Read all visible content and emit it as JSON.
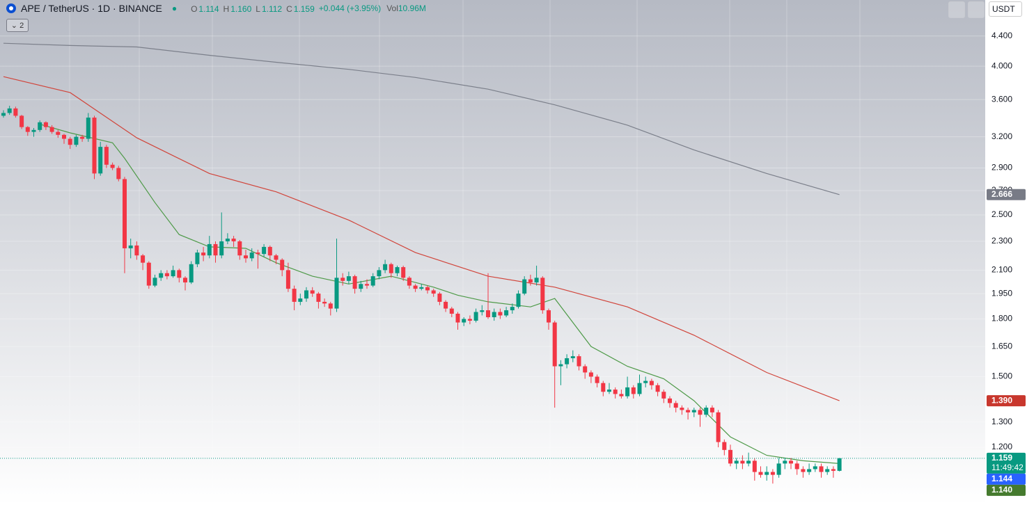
{
  "chart_data": {
    "type": "candlestick",
    "title": "APE / TetherUS · 1D · BINANCE",
    "ohlc": [
      {
        "label": "O",
        "value": "1.114"
      },
      {
        "label": "H",
        "value": "1.160"
      },
      {
        "label": "L",
        "value": "1.112"
      },
      {
        "label": "C",
        "value": "1.159"
      }
    ],
    "change": "+0.044 (+3.95%)",
    "volume": {
      "label": "Vol",
      "value": "10.96M"
    },
    "indicator_toggle": "2",
    "currency": "USDT",
    "log": true,
    "grid": true,
    "up_color": "#089981",
    "down_color": "#f23645",
    "ylim": [
      1.0,
      4.93
    ],
    "yticks": [
      {
        "value": 4.4,
        "label": "4.400"
      },
      {
        "value": 4.0,
        "label": "4.000"
      },
      {
        "value": 3.6,
        "label": "3.600"
      },
      {
        "value": 3.2,
        "label": "3.200"
      },
      {
        "value": 2.9,
        "label": "2.900"
      },
      {
        "value": 2.7,
        "label": "2.700"
      },
      {
        "value": 2.5,
        "label": "2.500"
      },
      {
        "value": 2.3,
        "label": "2.300"
      },
      {
        "value": 2.1,
        "label": "2.100"
      },
      {
        "value": 1.95,
        "label": "1.950"
      },
      {
        "value": 1.8,
        "label": "1.800"
      },
      {
        "value": 1.65,
        "label": "1.650"
      },
      {
        "value": 1.5,
        "label": "1.500"
      },
      {
        "value": 1.3,
        "label": "1.300"
      },
      {
        "value": 1.2,
        "label": "1.200"
      }
    ],
    "candles": [
      [
        3.42,
        3.48,
        3.4,
        3.45
      ],
      [
        3.45,
        3.53,
        3.43,
        3.5
      ],
      [
        3.5,
        3.52,
        3.4,
        3.42
      ],
      [
        3.42,
        3.43,
        3.28,
        3.3
      ],
      [
        3.3,
        3.31,
        3.21,
        3.25
      ],
      [
        3.25,
        3.29,
        3.2,
        3.27
      ],
      [
        3.27,
        3.37,
        3.25,
        3.35
      ],
      [
        3.35,
        3.36,
        3.27,
        3.3
      ],
      [
        3.3,
        3.32,
        3.23,
        3.25
      ],
      [
        3.25,
        3.27,
        3.19,
        3.22
      ],
      [
        3.22,
        3.23,
        3.13,
        3.18
      ],
      [
        3.18,
        3.2,
        3.08,
        3.12
      ],
      [
        3.12,
        3.22,
        3.1,
        3.2
      ],
      [
        3.2,
        3.22,
        3.15,
        3.18
      ],
      [
        3.18,
        3.45,
        3.15,
        3.4
      ],
      [
        3.4,
        3.42,
        2.8,
        2.85
      ],
      [
        2.85,
        3.15,
        2.83,
        3.1
      ],
      [
        3.1,
        3.12,
        2.9,
        2.93
      ],
      [
        2.93,
        2.95,
        2.88,
        2.9
      ],
      [
        2.9,
        2.92,
        2.78,
        2.8
      ],
      [
        2.8,
        2.82,
        2.08,
        2.25
      ],
      [
        2.25,
        2.32,
        2.18,
        2.27
      ],
      [
        2.27,
        2.3,
        2.17,
        2.2
      ],
      [
        2.2,
        2.21,
        2.1,
        2.15
      ],
      [
        2.15,
        2.16,
        1.98,
        2.0
      ],
      [
        2.0,
        2.07,
        1.99,
        2.05
      ],
      [
        2.05,
        2.1,
        2.03,
        2.08
      ],
      [
        2.08,
        2.1,
        2.04,
        2.06
      ],
      [
        2.06,
        2.13,
        2.05,
        2.1
      ],
      [
        2.1,
        2.11,
        2.02,
        2.05
      ],
      [
        2.05,
        2.06,
        1.97,
        2.02
      ],
      [
        2.02,
        2.16,
        2.01,
        2.14
      ],
      [
        2.14,
        2.24,
        2.12,
        2.22
      ],
      [
        2.22,
        2.26,
        2.16,
        2.2
      ],
      [
        2.2,
        2.34,
        2.18,
        2.28
      ],
      [
        2.28,
        2.3,
        2.15,
        2.2
      ],
      [
        2.2,
        2.52,
        2.18,
        2.3
      ],
      [
        2.3,
        2.36,
        2.28,
        2.32
      ],
      [
        2.32,
        2.34,
        2.26,
        2.3
      ],
      [
        2.3,
        2.31,
        2.17,
        2.2
      ],
      [
        2.2,
        2.24,
        2.15,
        2.18
      ],
      [
        2.18,
        2.25,
        2.16,
        2.22
      ],
      [
        2.22,
        2.24,
        2.11,
        2.21
      ],
      [
        2.21,
        2.28,
        2.19,
        2.26
      ],
      [
        2.26,
        2.27,
        2.16,
        2.2
      ],
      [
        2.2,
        2.21,
        2.14,
        2.17
      ],
      [
        2.17,
        2.18,
        2.06,
        2.1
      ],
      [
        2.1,
        2.15,
        1.96,
        1.98
      ],
      [
        1.98,
        2.0,
        1.85,
        1.9
      ],
      [
        1.9,
        1.95,
        1.88,
        1.92
      ],
      [
        1.92,
        1.99,
        1.9,
        1.97
      ],
      [
        1.97,
        1.99,
        1.93,
        1.95
      ],
      [
        1.95,
        1.96,
        1.86,
        1.9
      ],
      [
        1.9,
        1.92,
        1.87,
        1.89
      ],
      [
        1.89,
        1.9,
        1.82,
        1.86
      ],
      [
        1.86,
        2.32,
        1.84,
        2.05
      ],
      [
        2.05,
        2.08,
        2.0,
        2.03
      ],
      [
        2.03,
        2.09,
        2.01,
        2.06
      ],
      [
        2.06,
        2.07,
        1.95,
        1.98
      ],
      [
        1.98,
        2.03,
        1.96,
        2.01
      ],
      [
        2.01,
        2.04,
        1.98,
        2.0
      ],
      [
        2.0,
        2.08,
        1.99,
        2.06
      ],
      [
        2.06,
        2.12,
        2.04,
        2.1
      ],
      [
        2.1,
        2.17,
        2.08,
        2.14
      ],
      [
        2.14,
        2.15,
        2.05,
        2.08
      ],
      [
        2.08,
        2.13,
        2.06,
        2.12
      ],
      [
        2.12,
        2.13,
        2.03,
        2.05
      ],
      [
        2.05,
        2.06,
        1.98,
        2.0
      ],
      [
        2.0,
        2.01,
        1.96,
        1.98
      ],
      [
        1.98,
        2.01,
        1.97,
        1.99
      ],
      [
        1.99,
        2.0,
        1.95,
        1.97
      ],
      [
        1.97,
        1.98,
        1.93,
        1.95
      ],
      [
        1.95,
        1.96,
        1.88,
        1.9
      ],
      [
        1.9,
        1.91,
        1.84,
        1.86
      ],
      [
        1.86,
        1.87,
        1.81,
        1.83
      ],
      [
        1.83,
        1.84,
        1.74,
        1.78
      ],
      [
        1.78,
        1.81,
        1.76,
        1.8
      ],
      [
        1.8,
        1.82,
        1.77,
        1.79
      ],
      [
        1.79,
        1.86,
        1.78,
        1.84
      ],
      [
        1.84,
        1.88,
        1.82,
        1.85
      ],
      [
        1.85,
        2.08,
        1.8,
        1.81
      ],
      [
        1.81,
        1.86,
        1.79,
        1.84
      ],
      [
        1.84,
        1.86,
        1.8,
        1.82
      ],
      [
        1.82,
        1.87,
        1.81,
        1.85
      ],
      [
        1.85,
        1.89,
        1.83,
        1.87
      ],
      [
        1.87,
        1.97,
        1.86,
        1.95
      ],
      [
        1.95,
        2.06,
        1.94,
        2.04
      ],
      [
        2.04,
        2.07,
        2.0,
        2.02
      ],
      [
        2.02,
        2.13,
        2.0,
        2.05
      ],
      [
        2.05,
        2.06,
        1.83,
        1.85
      ],
      [
        1.85,
        1.86,
        1.74,
        1.78
      ],
      [
        1.78,
        1.79,
        1.36,
        1.55
      ],
      [
        1.55,
        1.58,
        1.46,
        1.56
      ],
      [
        1.56,
        1.61,
        1.54,
        1.59
      ],
      [
        1.59,
        1.63,
        1.57,
        1.6
      ],
      [
        1.6,
        1.61,
        1.53,
        1.55
      ],
      [
        1.55,
        1.56,
        1.49,
        1.52
      ],
      [
        1.52,
        1.53,
        1.47,
        1.5
      ],
      [
        1.5,
        1.51,
        1.45,
        1.47
      ],
      [
        1.47,
        1.48,
        1.41,
        1.43
      ],
      [
        1.43,
        1.47,
        1.42,
        1.44
      ],
      [
        1.44,
        1.45,
        1.4,
        1.42
      ],
      [
        1.42,
        1.44,
        1.4,
        1.41
      ],
      [
        1.41,
        1.5,
        1.4,
        1.45
      ],
      [
        1.45,
        1.46,
        1.4,
        1.42
      ],
      [
        1.42,
        1.51,
        1.41,
        1.47
      ],
      [
        1.47,
        1.5,
        1.45,
        1.48
      ],
      [
        1.48,
        1.49,
        1.44,
        1.46
      ],
      [
        1.46,
        1.47,
        1.41,
        1.43
      ],
      [
        1.43,
        1.44,
        1.38,
        1.4
      ],
      [
        1.4,
        1.41,
        1.36,
        1.38
      ],
      [
        1.38,
        1.39,
        1.34,
        1.36
      ],
      [
        1.36,
        1.37,
        1.33,
        1.35
      ],
      [
        1.35,
        1.36,
        1.31,
        1.34
      ],
      [
        1.34,
        1.36,
        1.32,
        1.35
      ],
      [
        1.35,
        1.36,
        1.28,
        1.33
      ],
      [
        1.33,
        1.37,
        1.32,
        1.36
      ],
      [
        1.36,
        1.37,
        1.32,
        1.34
      ],
      [
        1.34,
        1.35,
        1.2,
        1.22
      ],
      [
        1.22,
        1.23,
        1.17,
        1.19
      ],
      [
        1.19,
        1.21,
        1.13,
        1.14
      ],
      [
        1.14,
        1.16,
        1.12,
        1.15
      ],
      [
        1.15,
        1.17,
        1.12,
        1.14
      ],
      [
        1.14,
        1.18,
        1.13,
        1.15
      ],
      [
        1.15,
        1.16,
        1.08,
        1.11
      ],
      [
        1.11,
        1.13,
        1.09,
        1.1
      ],
      [
        1.1,
        1.13,
        1.08,
        1.11
      ],
      [
        1.11,
        1.12,
        1.07,
        1.1
      ],
      [
        1.1,
        1.16,
        1.09,
        1.14
      ],
      [
        1.14,
        1.16,
        1.12,
        1.15
      ],
      [
        1.15,
        1.16,
        1.12,
        1.14
      ],
      [
        1.14,
        1.15,
        1.1,
        1.12
      ],
      [
        1.12,
        1.13,
        1.09,
        1.11
      ],
      [
        1.11,
        1.14,
        1.1,
        1.12
      ],
      [
        1.12,
        1.14,
        1.11,
        1.13
      ],
      [
        1.13,
        1.14,
        1.09,
        1.11
      ],
      [
        1.11,
        1.13,
        1.1,
        1.12
      ],
      [
        1.12,
        1.13,
        1.09,
        1.114
      ],
      [
        1.114,
        1.16,
        1.112,
        1.159
      ]
    ],
    "lines": [
      {
        "color": "#7b7f8a",
        "x": [
          0,
          11,
          22,
          34,
          45,
          57,
          68,
          80,
          91,
          103,
          114,
          126,
          138
        ],
        "values": [
          4.3,
          4.27,
          4.25,
          4.14,
          4.05,
          3.96,
          3.86,
          3.72,
          3.54,
          3.32,
          3.07,
          2.85,
          2.666
        ]
      },
      {
        "color": "#d1453b",
        "x": [
          0,
          11,
          22,
          34,
          45,
          57,
          68,
          80,
          91,
          103,
          114,
          126,
          138
        ],
        "values": [
          3.87,
          3.68,
          3.19,
          2.85,
          2.69,
          2.46,
          2.22,
          2.06,
          1.99,
          1.87,
          1.71,
          1.52,
          1.39
        ]
      },
      {
        "color": "#4e9a48",
        "x": [
          6,
          11,
          18,
          20,
          25,
          29,
          34,
          40,
          45,
          51,
          57,
          64,
          71,
          75,
          80,
          87,
          91,
          97,
          103,
          109,
          114,
          120,
          126,
          132,
          138
        ],
        "values": [
          3.33,
          3.24,
          3.14,
          2.99,
          2.6,
          2.35,
          2.26,
          2.25,
          2.15,
          2.06,
          2.01,
          2.06,
          1.99,
          1.94,
          1.9,
          1.87,
          1.92,
          1.65,
          1.55,
          1.49,
          1.39,
          1.24,
          1.17,
          1.15,
          1.14
        ]
      }
    ],
    "markers": [
      {
        "value": 2.666,
        "label": "2.666",
        "color": "#787b86"
      },
      {
        "value": 1.39,
        "label": "1.390",
        "color": "#c8372d"
      },
      {
        "value": 1.159,
        "label": "1.159",
        "countdown": "11:49:42",
        "color": "#089981"
      },
      {
        "value": 1.144,
        "label": "1.144",
        "color": "#2962ff"
      },
      {
        "value": 1.14,
        "label": "1.140",
        "color": "#457a2e"
      }
    ]
  }
}
